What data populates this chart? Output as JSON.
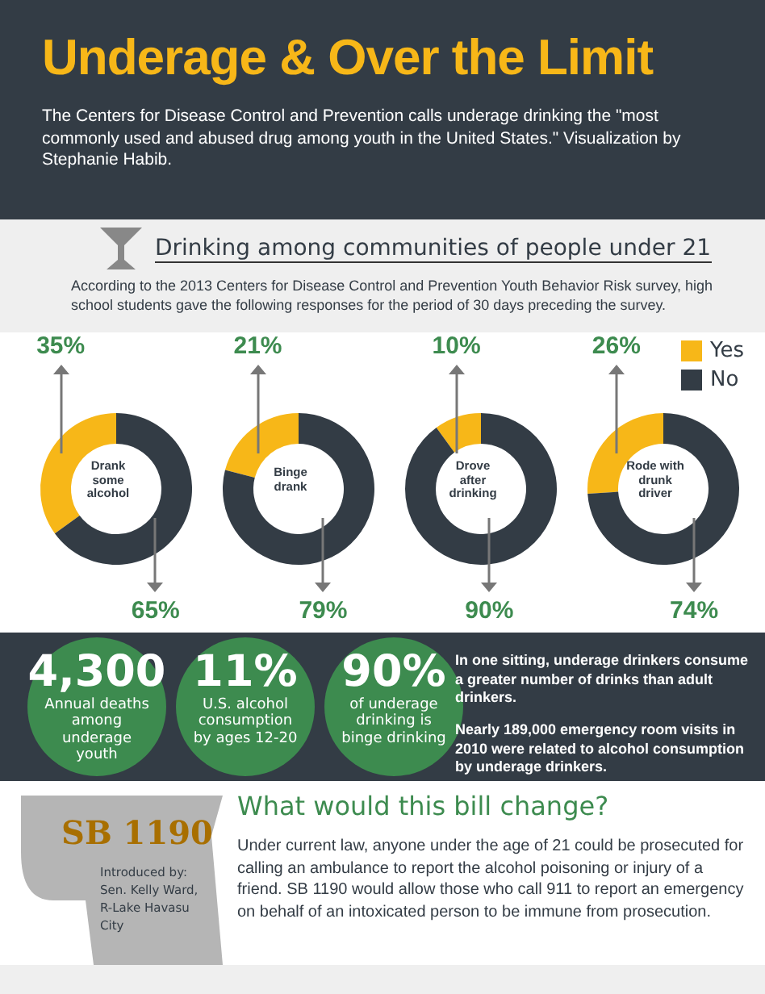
{
  "chart_data": [
    {
      "type": "other",
      "title": "Underage & Over the Limit",
      "subtitle": "The Centers for Disease Control and Prevention calls underage drinking the \"most commonly used and abused drug among youth in the United States.\" Visualization by Stephanie Habib.",
      "annotations": [
        "Drinking among communities of people under 21",
        "According to the 2013 Centers for Disease Control and Prevention Youth Behavior Risk survey, high school students gave the following responses for the period of 30 days preceding the survey."
      ]
    },
    {
      "type": "donut",
      "title": "Drank some alcohol",
      "values": [
        35,
        65
      ],
      "value_labels": [
        "35%",
        "65%"
      ],
      "colors": [
        "#f7b718",
        "#333c45"
      ]
    },
    {
      "type": "donut",
      "title": "Binge drank",
      "values": [
        21,
        79
      ],
      "value_labels": [
        "21%",
        "79%"
      ],
      "colors": [
        "#f7b718",
        "#333c45"
      ]
    },
    {
      "type": "donut",
      "title": "Drove after drinking",
      "values": [
        10,
        90
      ],
      "value_labels": [
        "10%",
        "90%"
      ],
      "colors": [
        "#f7b718",
        "#333c45"
      ]
    },
    {
      "type": "donut",
      "title": "Rode with drunk driver",
      "categories": [
        "Yes",
        "No"
      ],
      "values": [
        26,
        74
      ],
      "value_labels": [
        "26%",
        "74%"
      ],
      "colors": [
        "#f7b718",
        "#333c45"
      ],
      "legend": "top right"
    },
    {
      "type": "other",
      "annotations": [
        "4,300",
        "Annual deaths among underage youth",
        "11%",
        "U.S. alcohol consumption by ages 12-20",
        "90%",
        "of underage drinking is binge drinking",
        "In one sitting, underage drinkers consume a greater number of drinks than adult drinkers.",
        "Nearly 189,000 emergency room visits in 2010 were related to alcohol consumption by underage drinkers."
      ]
    },
    {
      "type": "other",
      "title": "What would this bill change?",
      "annotations": [
        "SB 1190",
        "Introduced by: Sen. Kelly Ward, R-Lake Havasu City",
        "Under current law, anyone under the age of 21 could be prosecuted for calling an ambulance to report the alcohol poisoning or injury of a friend. SB 1190 would allow those who call 911 to report an emergency on behalf of an intoxicated person to be immune from prosecution."
      ]
    }
  ]
}
